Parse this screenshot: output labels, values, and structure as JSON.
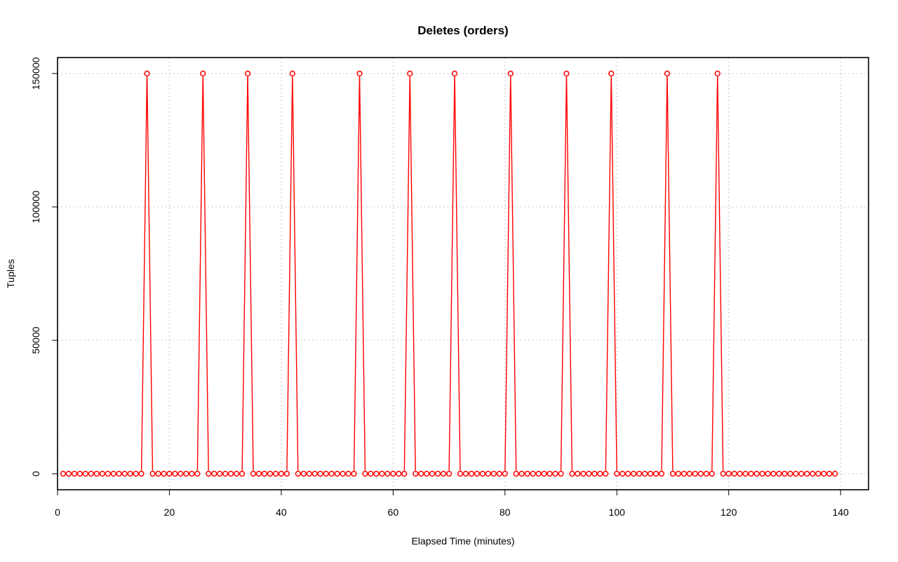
{
  "chart_data": {
    "type": "line",
    "title": "Deletes (orders)",
    "xlabel": "Elapsed Time (minutes)",
    "ylabel": "Tuples",
    "xlim": [
      0,
      145
    ],
    "ylim": [
      -6000,
      156000
    ],
    "xticks": [
      0,
      20,
      40,
      60,
      80,
      100,
      120,
      140
    ],
    "yticks": [
      0,
      50000,
      100000,
      150000
    ],
    "grid": true,
    "marker": "open-circle",
    "color": "#ff0000",
    "series": [
      {
        "x_start": 1,
        "x_end": 139,
        "baseline": 0,
        "peak_x": [
          16,
          26,
          34,
          42,
          54,
          63,
          71,
          81,
          91,
          99,
          109,
          118
        ],
        "peak_value": 150000
      }
    ]
  }
}
